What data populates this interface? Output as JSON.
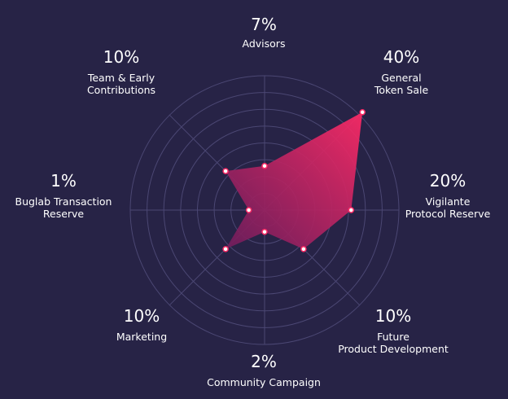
{
  "chart_data": {
    "type": "radar",
    "categories": [
      "Advisors",
      "General Token Sale",
      "Vigilante Protocol Reserve",
      "Future Product Development",
      "Community Campaign",
      "Marketing",
      "Buglab Transaction Reserve",
      "Team & Early Contributions"
    ],
    "values": [
      7,
      40,
      20,
      10,
      2,
      10,
      1,
      10
    ],
    "labels": [
      {
        "pct": "7%",
        "line1": "Advisors",
        "line2": ""
      },
      {
        "pct": "40%",
        "line1": "General",
        "line2": "Token Sale"
      },
      {
        "pct": "20%",
        "line1": "Vigilante",
        "line2": "Protocol Reserve"
      },
      {
        "pct": "10%",
        "line1": "Future",
        "line2": "Product Development"
      },
      {
        "pct": "2%",
        "line1": "Community Campaign",
        "line2": ""
      },
      {
        "pct": "10%",
        "line1": "Marketing",
        "line2": ""
      },
      {
        "pct": "1%",
        "line1": "Buglab Transaction",
        "line2": "Reserve"
      },
      {
        "pct": "10%",
        "line1": "Team & Early",
        "line2": "Contributions"
      }
    ],
    "grid": true,
    "colors": {
      "background": "#272346",
      "fill_start": "#ff2a66",
      "fill_end": "#7a1e5e",
      "grid": "#4b4773",
      "point": "#ffffff"
    }
  }
}
